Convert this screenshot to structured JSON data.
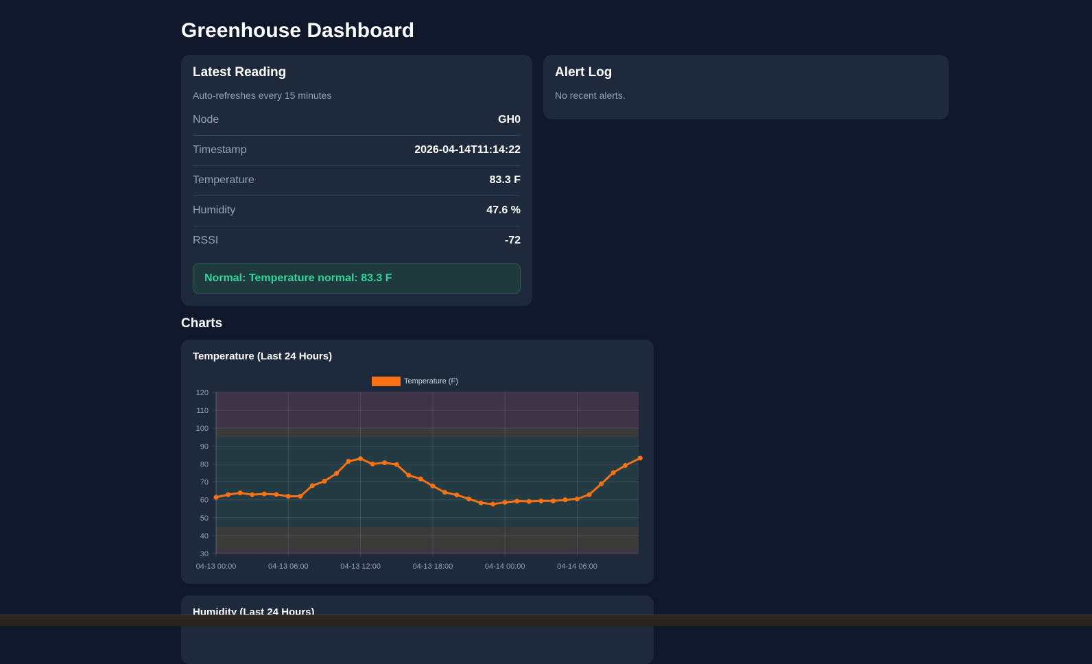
{
  "page": {
    "title": "Greenhouse Dashboard"
  },
  "latest": {
    "title": "Latest Reading",
    "subtitle": "Auto-refreshes every 15 minutes",
    "rows": [
      {
        "label": "Node",
        "value": "GH0"
      },
      {
        "label": "Timestamp",
        "value": "2026-04-14T11:14:22"
      },
      {
        "label": "Temperature",
        "value": "83.3 F"
      },
      {
        "label": "Humidity",
        "value": "47.6 %"
      },
      {
        "label": "RSSI",
        "value": "-72"
      }
    ],
    "status": "Normal: Temperature normal: 83.3 F",
    "status_color": "#34d399"
  },
  "alerts": {
    "title": "Alert Log",
    "empty": "No recent alerts."
  },
  "charts": {
    "heading": "Charts",
    "humidity_title": "Humidity (Last 24 Hours)"
  },
  "chart_data": {
    "type": "line",
    "title": "Temperature (Last 24 Hours)",
    "series": [
      {
        "name": "Temperature (F)",
        "color": "#f97316",
        "x": [
          "04-13 00:00",
          "04-13 01:00",
          "04-13 02:00",
          "04-13 03:00",
          "04-13 04:00",
          "04-13 05:00",
          "04-13 06:00",
          "04-13 07:00",
          "04-13 08:00",
          "04-13 09:00",
          "04-13 10:00",
          "04-13 11:00",
          "04-13 12:00",
          "04-13 13:00",
          "04-13 14:00",
          "04-13 15:00",
          "04-13 16:00",
          "04-13 17:00",
          "04-13 18:00",
          "04-13 19:00",
          "04-13 20:00",
          "04-13 21:00",
          "04-13 22:00",
          "04-13 23:00",
          "04-14 00:00",
          "04-14 01:00",
          "04-14 02:00",
          "04-14 03:00",
          "04-14 04:00",
          "04-14 05:00",
          "04-14 06:00",
          "04-14 07:00",
          "04-14 08:00",
          "04-14 09:00",
          "04-14 10:00",
          "04-14 11:14"
        ],
        "values": [
          61.4,
          62.9,
          63.9,
          62.9,
          63.3,
          63.0,
          62.0,
          62.0,
          67.9,
          70.4,
          74.7,
          81.5,
          83.0,
          80.0,
          80.7,
          79.7,
          73.7,
          71.7,
          67.7,
          64.2,
          62.7,
          60.5,
          58.3,
          57.6,
          58.6,
          59.3,
          59.1,
          59.4,
          59.4,
          60.0,
          60.5,
          62.9,
          68.9,
          75.2,
          79.2,
          83.3
        ]
      }
    ],
    "x_ticks": [
      "04-13 00:00",
      "04-13 06:00",
      "04-13 12:00",
      "04-13 18:00",
      "04-14 00:00",
      "04-14 06:00"
    ],
    "y_ticks": [
      30,
      40,
      50,
      60,
      70,
      80,
      90,
      100,
      110,
      120
    ],
    "ylim": [
      30,
      120
    ],
    "grid": true,
    "legend": "top",
    "bands": [
      {
        "from": 100,
        "to": 120,
        "color": "#3f3347"
      },
      {
        "from": 95,
        "to": 100,
        "color": "#3a3b39"
      },
      {
        "from": 45,
        "to": 95,
        "color": "#243b43"
      },
      {
        "from": 32,
        "to": 45,
        "color": "#3a3b39"
      },
      {
        "from": 30,
        "to": 32,
        "color": "#3f3347"
      }
    ]
  }
}
